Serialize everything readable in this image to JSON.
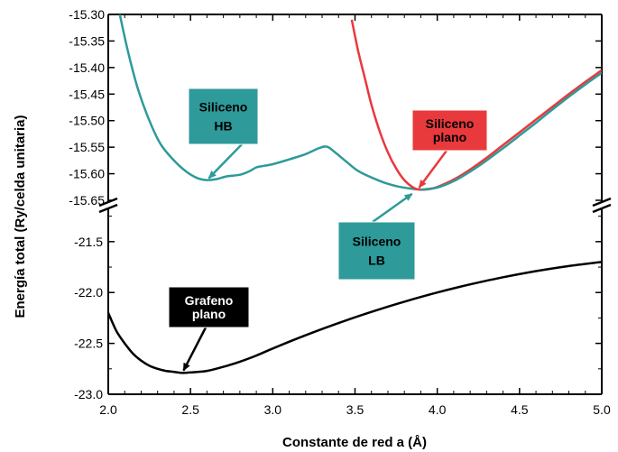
{
  "chart_data": {
    "type": "line",
    "xlabel": "Constante de red a (Å)",
    "ylabel": "Energía total (Ry/celda unitaria)",
    "xlim": [
      2.0,
      5.0
    ],
    "x_ticks": [
      "2.0",
      "2.5",
      "3.0",
      "3.5",
      "4.0",
      "4.5",
      "5.0"
    ],
    "y_upper_range": [
      -15.65,
      -15.3
    ],
    "y_upper_ticks": [
      "-15.30",
      "-15.35",
      "-15.40",
      "-15.45",
      "-15.50",
      "-15.55",
      "-15.60",
      "-15.65"
    ],
    "y_lower_range": [
      -23.0,
      -21.2
    ],
    "y_lower_ticks": [
      "-21.5",
      "-22.0",
      "-22.5",
      "-23.0"
    ],
    "grid": false,
    "broken_y_axis": true,
    "colors": {
      "siliceno_hb": "#2e9a9a",
      "siliceno_plano": "#e8393d",
      "grafeno_plano": "#000000"
    },
    "series": [
      {
        "panel": "upper",
        "color": "#2e9a9a",
        "x": [
          2.07,
          2.12,
          2.18,
          2.25,
          2.32,
          2.4,
          2.47,
          2.54,
          2.6,
          2.66,
          2.72,
          2.8,
          2.86,
          2.9,
          2.95,
          3.0,
          3.1,
          3.2,
          3.28,
          3.33,
          3.38,
          3.45,
          3.52,
          3.6,
          3.68,
          3.76,
          3.84,
          3.9
        ],
        "values": [
          -15.3,
          -15.37,
          -15.44,
          -15.5,
          -15.545,
          -15.575,
          -15.595,
          -15.608,
          -15.612,
          -15.61,
          -15.605,
          -15.602,
          -15.595,
          -15.588,
          -15.585,
          -15.582,
          -15.573,
          -15.563,
          -15.552,
          -15.549,
          -15.56,
          -15.578,
          -15.595,
          -15.607,
          -15.617,
          -15.624,
          -15.628,
          -15.63
        ]
      },
      {
        "panel": "upper",
        "color": "#e8393d",
        "x": [
          3.48,
          3.52,
          3.56,
          3.6,
          3.65,
          3.7,
          3.75,
          3.8,
          3.86,
          3.9,
          3.95,
          4.0,
          4.1,
          4.2,
          4.3,
          4.4,
          4.5,
          4.6,
          4.7,
          4.8,
          4.9,
          5.0
        ],
        "values": [
          -15.31,
          -15.37,
          -15.42,
          -15.47,
          -15.52,
          -15.56,
          -15.59,
          -15.612,
          -15.627,
          -15.63,
          -15.629,
          -15.625,
          -15.611,
          -15.592,
          -15.57,
          -15.546,
          -15.522,
          -15.498,
          -15.474,
          -15.45,
          -15.427,
          -15.405
        ]
      },
      {
        "panel": "upper",
        "color": "#2e9a9a",
        "x": [
          3.9,
          4.0,
          4.1,
          4.2,
          4.3,
          4.4,
          4.5,
          4.6,
          4.7,
          4.8,
          4.9,
          5.0
        ],
        "values": [
          -15.63,
          -15.626,
          -15.614,
          -15.596,
          -15.575,
          -15.552,
          -15.528,
          -15.504,
          -15.479,
          -15.455,
          -15.432,
          -15.41
        ]
      },
      {
        "panel": "lower",
        "color": "#000000",
        "x": [
          2.0,
          2.05,
          2.1,
          2.15,
          2.2,
          2.25,
          2.3,
          2.35,
          2.4,
          2.45,
          2.5,
          2.6,
          2.7,
          2.8,
          2.9,
          3.0,
          3.2,
          3.4,
          3.6,
          3.8,
          4.0,
          4.2,
          4.4,
          4.6,
          4.8,
          5.0
        ],
        "values": [
          -22.2,
          -22.38,
          -22.5,
          -22.6,
          -22.67,
          -22.72,
          -22.75,
          -22.77,
          -22.78,
          -22.79,
          -22.785,
          -22.77,
          -22.73,
          -22.68,
          -22.62,
          -22.55,
          -22.42,
          -22.3,
          -22.19,
          -22.09,
          -22.0,
          -21.92,
          -21.85,
          -21.79,
          -21.74,
          -21.7
        ]
      }
    ],
    "annotations": [
      {
        "id": "hb",
        "lines": [
          "Siliceno",
          "HB"
        ],
        "fill": "#2e9a9a",
        "text_color": "#000000",
        "target_panel": "upper",
        "target": [
          2.6,
          -15.612
        ]
      },
      {
        "id": "plano",
        "lines": [
          "Siliceno",
          "plano"
        ],
        "fill": "#e8393d",
        "text_color": "#000000",
        "target_panel": "upper",
        "target": [
          3.88,
          -15.63
        ]
      },
      {
        "id": "lb",
        "lines": [
          "Siliceno",
          "LB"
        ],
        "fill": "#2e9a9a",
        "text_color": "#000000",
        "target_panel": "upper",
        "target": [
          3.86,
          -15.635
        ]
      },
      {
        "id": "grafeno",
        "lines": [
          "Grafeno",
          "plano"
        ],
        "fill": "#000000",
        "text_color": "#ffffff",
        "target_panel": "lower",
        "target": [
          2.45,
          -22.79
        ]
      }
    ]
  }
}
